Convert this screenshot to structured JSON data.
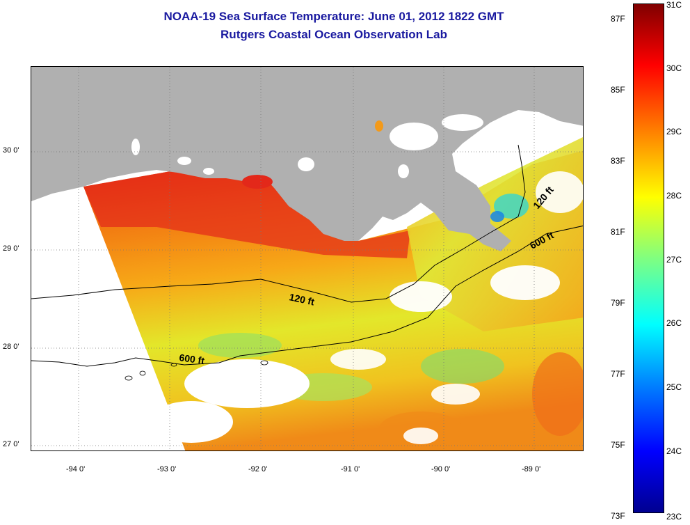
{
  "title": {
    "line1": "NOAA-19 Sea Surface Temperature:  June 01, 2012 1822 GMT",
    "line2": "Rutgers Coastal Ocean Observation Lab"
  },
  "map": {
    "lat_ticks": [
      "30 0'",
      "29 0'",
      "28 0'",
      "27 0'"
    ],
    "lon_ticks": [
      "-94 0'",
      "-93 0'",
      "-92 0'",
      "-91 0'",
      "-90 0'",
      "-89 0'"
    ],
    "isobaths": [
      {
        "label": "120 ft",
        "depth_ft": 120
      },
      {
        "label": "600 ft",
        "depth_ft": 600
      }
    ],
    "colors": {
      "land": "#b0b0b0",
      "no_data": "#ffffff",
      "contour": "#000000"
    }
  },
  "colorbar": {
    "fahrenheit_labels": [
      "87F",
      "85F",
      "83F",
      "81F",
      "79F",
      "77F",
      "75F",
      "73F"
    ],
    "celsius_labels": [
      "31C",
      "30C",
      "29C",
      "28C",
      "27C",
      "26C",
      "25C",
      "24C",
      "23C"
    ],
    "range_c": [
      23,
      31
    ],
    "colormap": "jet"
  }
}
